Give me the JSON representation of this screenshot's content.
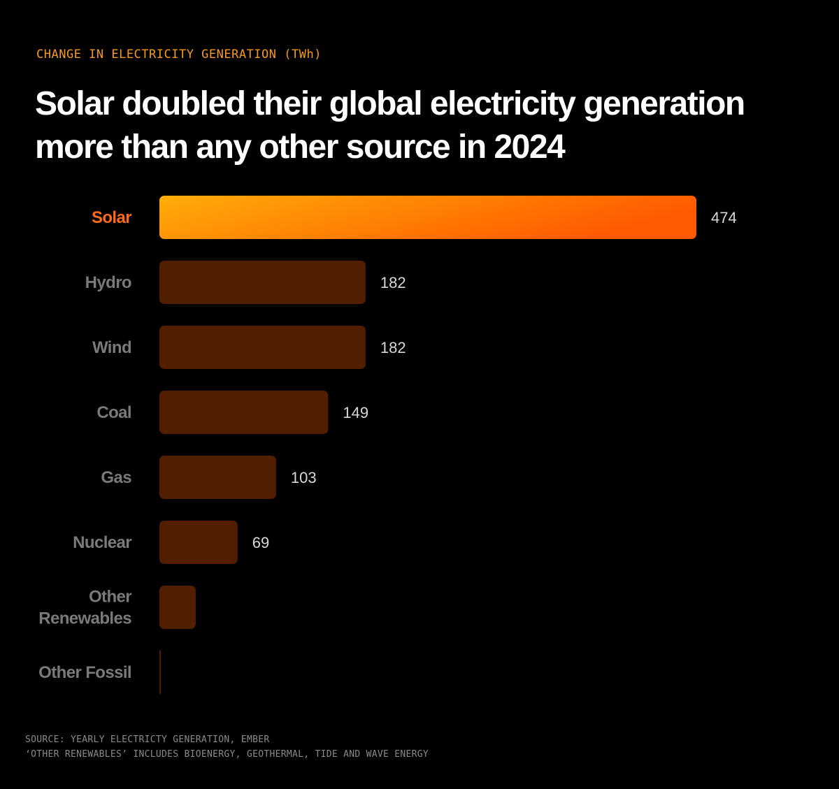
{
  "header": {
    "eyebrow": "CHANGE IN ELECTRICITY GENERATION (TWh)",
    "title": "Solar doubled their global electricity generation more than any other source in 2024"
  },
  "colors": {
    "background": "#000000",
    "eyebrow": "#f59a1f",
    "highlight_label": "#ff6a1a",
    "label": "#7a7a7a",
    "value": "#d8d8d8",
    "bar": "#521e00",
    "highlight_gradient_start": "#ffad08",
    "highlight_gradient_end": "#ff5a00",
    "footer": "#8a8a8a"
  },
  "chart_data": {
    "type": "bar",
    "orientation": "horizontal",
    "title": "Solar doubled their global electricity generation more than any other source in 2024",
    "subtitle": "CHANGE IN ELECTRICITY GENERATION (TWh)",
    "xlabel": "",
    "ylabel": "",
    "unit": "TWh",
    "xlim": [
      0,
      474
    ],
    "grid": false,
    "highlight": "Solar",
    "categories": [
      {
        "name": "Solar",
        "lines": [
          "Solar"
        ],
        "value": 474,
        "value_label": "474"
      },
      {
        "name": "Hydro",
        "lines": [
          "Hydro"
        ],
        "value": 182,
        "value_label": "182"
      },
      {
        "name": "Wind",
        "lines": [
          "Wind"
        ],
        "value": 182,
        "value_label": "182"
      },
      {
        "name": "Coal",
        "lines": [
          "Coal"
        ],
        "value": 149,
        "value_label": "149"
      },
      {
        "name": "Gas",
        "lines": [
          "Gas"
        ],
        "value": 103,
        "value_label": "103"
      },
      {
        "name": "Nuclear",
        "lines": [
          "Nuclear"
        ],
        "value": 69,
        "value_label": "69"
      },
      {
        "name": "Other Renewables",
        "lines": [
          "Other",
          "Renewables"
        ],
        "value": 32,
        "value_label": ""
      },
      {
        "name": "Other Fossil",
        "lines": [
          "Other Fossil"
        ],
        "value": 1,
        "value_label": ""
      }
    ]
  },
  "footer": {
    "source": "SOURCE: YEARLY ELECTRICTY GENERATION, EMBER",
    "note": "‘OTHER RENEWABLES’ INCLUDES BIOENERGY, GEOTHERMAL, TIDE AND WAVE ENERGY"
  }
}
